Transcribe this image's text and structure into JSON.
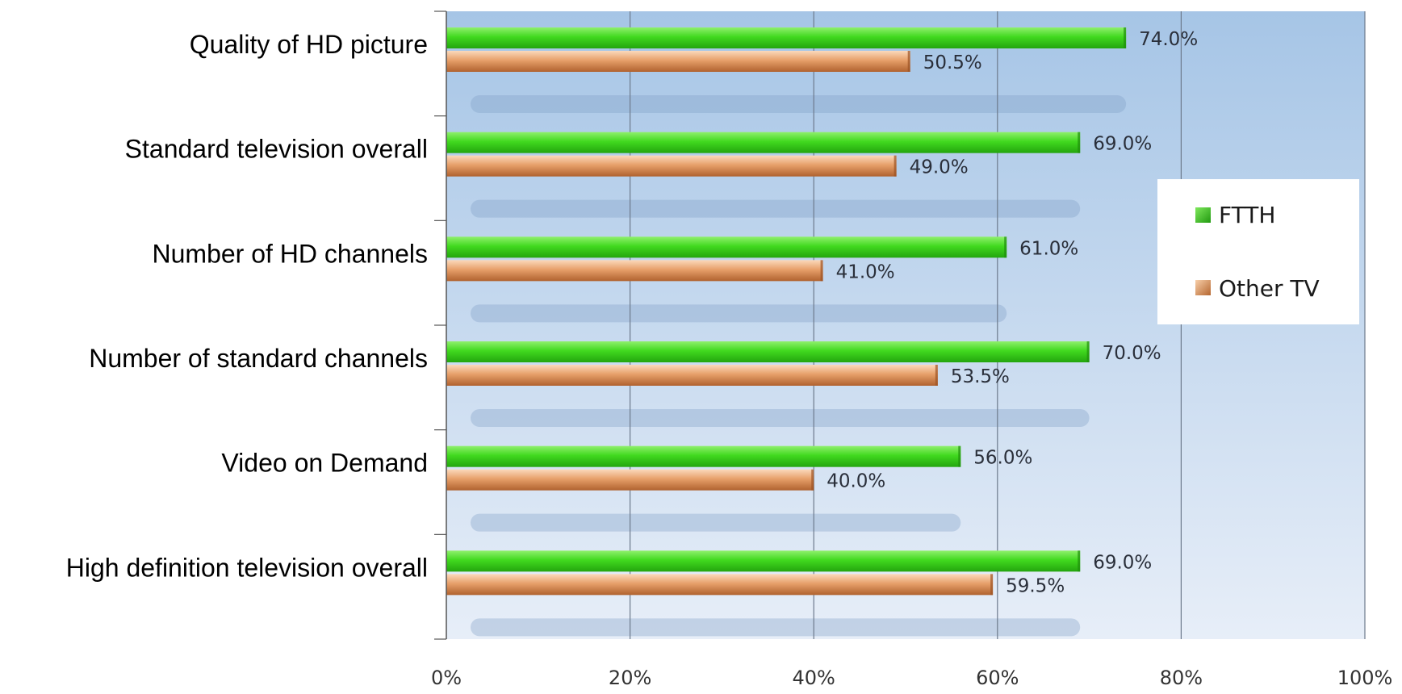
{
  "chart_data": {
    "type": "bar",
    "orientation": "horizontal",
    "title": "",
    "xlabel": "",
    "ylabel": "",
    "categories": [
      "Quality of HD picture",
      "Standard television overall",
      "Number of HD channels",
      "Number of standard channels",
      "Video on Demand",
      "High definition television overall"
    ],
    "series": [
      {
        "name": "FTTH",
        "color": "#3ed61e",
        "values": [
          74.0,
          69.0,
          61.0,
          70.0,
          56.0,
          69.0
        ]
      },
      {
        "name": "Other TV",
        "color": "#e0945a",
        "values": [
          50.5,
          49.0,
          41.0,
          53.5,
          40.0,
          59.5
        ]
      }
    ],
    "xlim": [
      0,
      100
    ],
    "xticks": [
      "0%",
      "20%",
      "40%",
      "60%",
      "80%",
      "100%"
    ],
    "value_format": "0.0%",
    "grid": true,
    "legend_position": "right",
    "plot_background": "#a7c6e6"
  }
}
